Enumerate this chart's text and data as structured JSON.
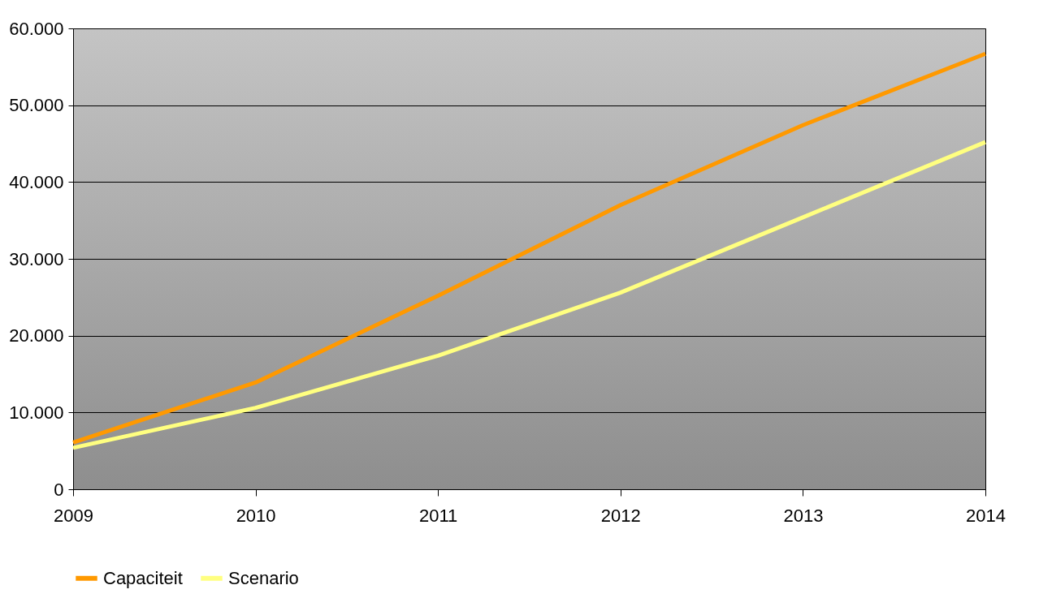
{
  "chart_data": {
    "type": "line",
    "x": [
      2009,
      2010,
      2011,
      2012,
      2013,
      2014
    ],
    "xlim": [
      2009,
      2014
    ],
    "xticks": [
      2009,
      2010,
      2011,
      2012,
      2013,
      2014
    ],
    "ylim": [
      0,
      60000
    ],
    "yticks": [
      {
        "value": 0,
        "label": "0"
      },
      {
        "value": 10000,
        "label": "10.000"
      },
      {
        "value": 20000,
        "label": "20.000"
      },
      {
        "value": 30000,
        "label": "30.000"
      },
      {
        "value": 40000,
        "label": "40.000"
      },
      {
        "value": 50000,
        "label": "50.000"
      },
      {
        "value": 60000,
        "label": "60.000"
      }
    ],
    "grid": "y",
    "legend": "bottom",
    "marker": "none",
    "line_style": "solid",
    "series": [
      {
        "name": "Capaciteit",
        "color": "#ff9900",
        "values": [
          6100,
          13900,
          25200,
          37000,
          47400,
          56700
        ]
      },
      {
        "name": "Scenario",
        "color": "#ffff80",
        "values": [
          5400,
          10600,
          17400,
          25600,
          35400,
          45200
        ]
      }
    ]
  }
}
